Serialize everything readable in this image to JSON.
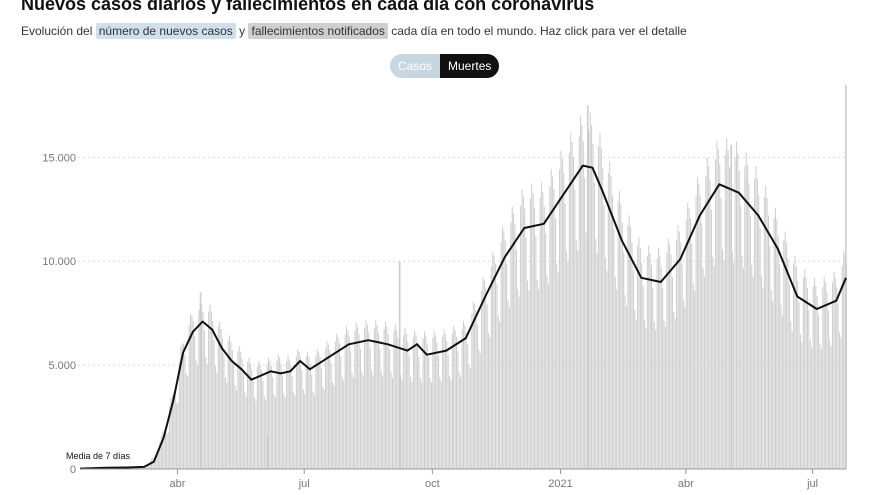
{
  "header": {
    "title": "Nuevos casos diarios y fallecimientos en cada día con coronavirus",
    "subtitle_pre": "Evolución del ",
    "subtitle_cases": "número de nuevos casos",
    "subtitle_mid": " y ",
    "subtitle_deaths": "fallecimientos notificados",
    "subtitle_post": " cada día en todo el mundo. Haz click para ver el detalle"
  },
  "toggle": {
    "cases_label": "Casos",
    "deaths_label": "Muertes",
    "active": "Muertes"
  },
  "colors": {
    "bars": "#cccccc",
    "line": "#111111",
    "grid": "#d9d9d9",
    "axis": "#999999",
    "cases_highlight": "#cfe0ec",
    "deaths_highlight": "#cfcfcf"
  },
  "chart_data": {
    "type": "bar",
    "title": "",
    "xlabel": "",
    "ylabel": "",
    "x_range": [
      "2020-01-22",
      "2021-07-25"
    ],
    "ylim": [
      0,
      18000
    ],
    "y_ticks": [
      0,
      5000,
      10000,
      15000
    ],
    "y_tick_labels": [
      "0",
      "5.000",
      "10.000",
      "15.000"
    ],
    "x_ticks": [
      "2020-04-01",
      "2020-07-01",
      "2020-10-01",
      "2021-01-01",
      "2021-04-01",
      "2021-07-01"
    ],
    "x_tick_labels": [
      "abr",
      "jul",
      "oct",
      "2021",
      "abr",
      "jul"
    ],
    "grid": true,
    "annotation": {
      "text": "Media de 7 días",
      "date": "2020-01-22",
      "value": 100
    },
    "series": [
      {
        "kind": "bars",
        "daily_points": [
          [
            "2020-01-22",
            20
          ],
          [
            "2020-02-10",
            90
          ],
          [
            "2020-02-25",
            60
          ],
          [
            "2020-03-08",
            120
          ],
          [
            "2020-03-15",
            500
          ],
          [
            "2020-03-22",
            1700
          ],
          [
            "2020-03-29",
            3400
          ],
          [
            "2020-04-05",
            5600
          ],
          [
            "2020-04-12",
            6600
          ],
          [
            "2020-04-19",
            7000
          ],
          [
            "2020-04-26",
            6600
          ],
          [
            "2020-05-03",
            5800
          ],
          [
            "2020-05-10",
            5300
          ],
          [
            "2020-05-17",
            4900
          ],
          [
            "2020-05-24",
            4400
          ],
          [
            "2020-05-31",
            4400
          ],
          [
            "2020-06-07",
            4600
          ],
          [
            "2020-06-14",
            4700
          ],
          [
            "2020-06-21",
            4600
          ],
          [
            "2020-06-28",
            5000
          ],
          [
            "2020-07-05",
            4700
          ],
          [
            "2020-07-19",
            5300
          ],
          [
            "2020-08-02",
            5900
          ],
          [
            "2020-08-16",
            6100
          ],
          [
            "2020-08-30",
            6000
          ],
          [
            "2020-09-13",
            5700
          ],
          [
            "2020-09-27",
            5600
          ],
          [
            "2020-10-11",
            5700
          ],
          [
            "2020-10-25",
            6100
          ],
          [
            "2020-11-08",
            8100
          ],
          [
            "2020-11-22",
            10200
          ],
          [
            "2020-12-06",
            11600
          ],
          [
            "2020-12-20",
            11700
          ],
          [
            "2021-01-03",
            13200
          ],
          [
            "2021-01-17",
            14600
          ],
          [
            "2021-01-24",
            14500
          ],
          [
            "2021-01-31",
            13400
          ],
          [
            "2021-02-14",
            11000
          ],
          [
            "2021-02-28",
            9200
          ],
          [
            "2021-03-14",
            9000
          ],
          [
            "2021-03-28",
            10100
          ],
          [
            "2021-04-11",
            12200
          ],
          [
            "2021-04-25",
            13600
          ],
          [
            "2021-05-09",
            13300
          ],
          [
            "2021-05-23",
            12200
          ],
          [
            "2021-06-06",
            10400
          ],
          [
            "2021-06-20",
            8400
          ],
          [
            "2021-07-04",
            7700
          ],
          [
            "2021-07-18",
            8100
          ],
          [
            "2021-07-25",
            9200
          ]
        ],
        "spikes": [
          [
            "2020-04-17",
            8500
          ],
          [
            "2020-06-04",
            1600
          ],
          [
            "2020-09-07",
            10000
          ],
          [
            "2021-01-20",
            17500
          ],
          [
            "2021-05-03",
            15600
          ],
          [
            "2021-07-26",
            18500
          ]
        ]
      },
      {
        "kind": "line",
        "points": [
          [
            "2020-01-22",
            20
          ],
          [
            "2020-02-10",
            60
          ],
          [
            "2020-02-25",
            70
          ],
          [
            "2020-03-08",
            100
          ],
          [
            "2020-03-15",
            350
          ],
          [
            "2020-03-22",
            1500
          ],
          [
            "2020-03-29",
            3300
          ],
          [
            "2020-04-05",
            5600
          ],
          [
            "2020-04-12",
            6600
          ],
          [
            "2020-04-19",
            7100
          ],
          [
            "2020-04-26",
            6700
          ],
          [
            "2020-05-03",
            5800
          ],
          [
            "2020-05-10",
            5200
          ],
          [
            "2020-05-17",
            4800
          ],
          [
            "2020-05-24",
            4300
          ],
          [
            "2020-05-31",
            4500
          ],
          [
            "2020-06-07",
            4700
          ],
          [
            "2020-06-14",
            4600
          ],
          [
            "2020-06-21",
            4700
          ],
          [
            "2020-06-28",
            5200
          ],
          [
            "2020-07-05",
            4800
          ],
          [
            "2020-07-19",
            5400
          ],
          [
            "2020-08-02",
            6000
          ],
          [
            "2020-08-16",
            6200
          ],
          [
            "2020-08-30",
            6000
          ],
          [
            "2020-09-13",
            5700
          ],
          [
            "2020-09-20",
            6000
          ],
          [
            "2020-09-27",
            5500
          ],
          [
            "2020-10-11",
            5700
          ],
          [
            "2020-10-25",
            6300
          ],
          [
            "2020-11-08",
            8300
          ],
          [
            "2020-11-22",
            10200
          ],
          [
            "2020-12-06",
            11600
          ],
          [
            "2020-12-20",
            11800
          ],
          [
            "2021-01-03",
            13200
          ],
          [
            "2021-01-17",
            14600
          ],
          [
            "2021-01-24",
            14500
          ],
          [
            "2021-01-31",
            13400
          ],
          [
            "2021-02-14",
            11000
          ],
          [
            "2021-02-28",
            9200
          ],
          [
            "2021-03-14",
            9000
          ],
          [
            "2021-03-28",
            10100
          ],
          [
            "2021-04-11",
            12200
          ],
          [
            "2021-04-25",
            13700
          ],
          [
            "2021-05-09",
            13300
          ],
          [
            "2021-05-23",
            12200
          ],
          [
            "2021-06-06",
            10600
          ],
          [
            "2021-06-20",
            8300
          ],
          [
            "2021-07-04",
            7700
          ],
          [
            "2021-07-18",
            8100
          ],
          [
            "2021-07-25",
            9200
          ]
        ]
      }
    ]
  }
}
